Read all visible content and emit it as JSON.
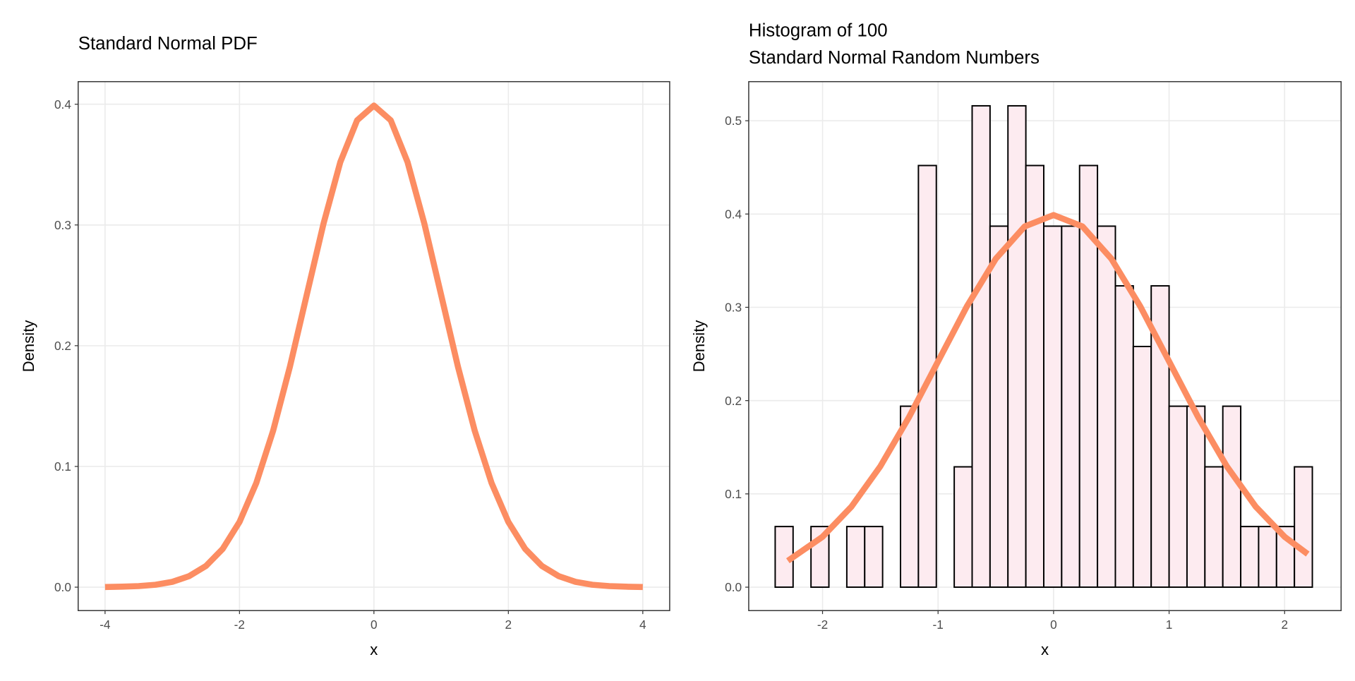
{
  "chart_data": [
    {
      "type": "line",
      "title": "Standard Normal PDF",
      "xlabel": "x",
      "ylabel": "Density",
      "x": [
        -4,
        -3.75,
        -3.5,
        -3.25,
        -3,
        -2.75,
        -2.5,
        -2.25,
        -2,
        -1.75,
        -1.5,
        -1.25,
        -1,
        -0.75,
        -0.5,
        -0.25,
        0,
        0.25,
        0.5,
        0.75,
        1,
        1.25,
        1.5,
        1.75,
        2,
        2.25,
        2.5,
        2.75,
        3,
        3.25,
        3.5,
        3.75,
        4
      ],
      "values": [
        0.0001,
        0.0004,
        0.0009,
        0.002,
        0.0044,
        0.0091,
        0.0175,
        0.0317,
        0.054,
        0.0863,
        0.1295,
        0.1826,
        0.242,
        0.3011,
        0.3521,
        0.3867,
        0.3989,
        0.3867,
        0.3521,
        0.3011,
        0.242,
        0.1826,
        0.1295,
        0.0863,
        0.054,
        0.0317,
        0.0175,
        0.0091,
        0.0044,
        0.002,
        0.0009,
        0.0004,
        0.0001
      ],
      "color": "#fc8d62",
      "xlim": [
        -4.4,
        4.4
      ],
      "xticks": [
        -4,
        -2,
        0,
        2,
        4
      ],
      "ylim": [
        -0.0194,
        0.4187
      ],
      "yticks": [
        {
          "value": 0,
          "label": "0.0"
        },
        0.1,
        0.2,
        0.3,
        0.4
      ],
      "grid": true
    },
    {
      "type": "histogram",
      "title": [
        "Histogram of 100",
        "Standard Normal Random Numbers"
      ],
      "xlabel": "x",
      "ylabel": "Density",
      "bins": [
        -2.41,
        -2.255,
        -2.1,
        -1.945,
        -1.79,
        -1.635,
        -1.48,
        -1.325,
        -1.17,
        -1.015,
        -0.86,
        -0.705,
        -0.55,
        -0.395,
        -0.24,
        -0.085,
        0.07,
        0.225,
        0.38,
        0.535,
        0.69,
        0.845,
        1,
        1.155,
        1.31,
        1.465,
        1.62,
        1.775,
        1.93,
        2.085,
        2.24
      ],
      "values": [
        0.065,
        0,
        0.065,
        0,
        0.065,
        0.065,
        0,
        0.194,
        0.452,
        0,
        0.129,
        0.516,
        0.387,
        0.516,
        0.452,
        0.387,
        0.387,
        0.452,
        0.387,
        0.323,
        0.258,
        0.323,
        0.194,
        0.194,
        0.129,
        0.194,
        0.065,
        0.065,
        0.065,
        0.129
      ],
      "color": "#fdebf0",
      "edgecolor": "#000000",
      "density_curve": {
        "x": [
          -2.3,
          -2,
          -1.75,
          -1.5,
          -1.25,
          -1,
          -0.75,
          -0.5,
          -0.25,
          0,
          0.25,
          0.5,
          0.75,
          1,
          1.25,
          1.5,
          1.75,
          2,
          2.2
        ],
        "values": [
          0.0283,
          0.054,
          0.0863,
          0.1295,
          0.1826,
          0.242,
          0.3011,
          0.3521,
          0.3867,
          0.3989,
          0.3867,
          0.3521,
          0.3011,
          0.242,
          0.1826,
          0.1295,
          0.0863,
          0.054,
          0.0355
        ],
        "color": "#fc8d62"
      },
      "xlim": [
        -2.639,
        2.489
      ],
      "xticks": [
        -2,
        -1,
        0,
        1,
        2
      ],
      "ylim": [
        -0.0251,
        0.5419
      ],
      "yticks": [
        {
          "value": 0,
          "label": "0.0"
        },
        0.1,
        0.2,
        0.3,
        0.4,
        0.5
      ],
      "grid": true
    }
  ]
}
